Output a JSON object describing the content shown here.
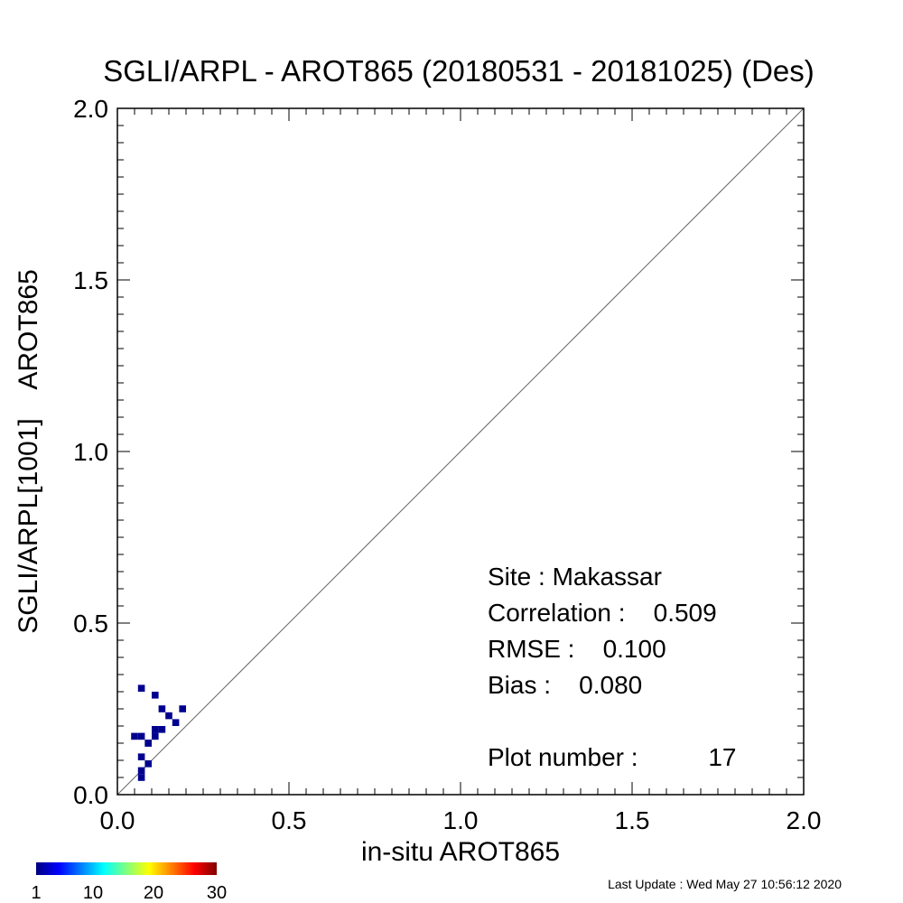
{
  "chart_data": {
    "type": "heatmap",
    "title": "SGLI/ARPL - AROT865 (20180531 - 20181025) (Des)",
    "xlabel": "in-situ AROT865",
    "ylabel": "SGLI/ARPL[1001]    AROT865",
    "xlim": [
      0.0,
      2.0
    ],
    "ylim": [
      0.0,
      2.0
    ],
    "x_ticks": [
      "0.0",
      "0.5",
      "1.0",
      "1.5",
      "2.0"
    ],
    "y_ticks": [
      "0.0",
      "0.5",
      "1.0",
      "1.5",
      "2.0"
    ],
    "reference_line": "1:1",
    "bin_size": 0.02,
    "points": [
      {
        "x": 0.07,
        "y": 0.31,
        "count": 1
      },
      {
        "x": 0.11,
        "y": 0.29,
        "count": 1
      },
      {
        "x": 0.19,
        "y": 0.25,
        "count": 1
      },
      {
        "x": 0.13,
        "y": 0.25,
        "count": 1
      },
      {
        "x": 0.15,
        "y": 0.23,
        "count": 1
      },
      {
        "x": 0.17,
        "y": 0.21,
        "count": 1
      },
      {
        "x": 0.11,
        "y": 0.19,
        "count": 1
      },
      {
        "x": 0.13,
        "y": 0.19,
        "count": 1
      },
      {
        "x": 0.05,
        "y": 0.17,
        "count": 1
      },
      {
        "x": 0.07,
        "y": 0.17,
        "count": 1
      },
      {
        "x": 0.11,
        "y": 0.17,
        "count": 1
      },
      {
        "x": 0.09,
        "y": 0.15,
        "count": 1
      },
      {
        "x": 0.07,
        "y": 0.11,
        "count": 1
      },
      {
        "x": 0.09,
        "y": 0.09,
        "count": 1
      },
      {
        "x": 0.07,
        "y": 0.07,
        "count": 1
      },
      {
        "x": 0.07,
        "y": 0.05,
        "count": 1
      },
      {
        "x": 0.09,
        "y": 0.15,
        "count": 1
      }
    ],
    "colorbar": {
      "min": 1,
      "max": 30,
      "tick_labels": [
        "1",
        "10",
        "20",
        "30"
      ]
    },
    "stats": {
      "site": "Site : Makassar",
      "correlation": "Correlation :    0.509",
      "rmse": "RMSE :    0.100",
      "bias": "Bias :    0.080",
      "plot_number": "Plot number :          17"
    },
    "last_update": "Last Update : Wed May 27 10:56:12 2020"
  },
  "colors": {
    "low": "#00008f",
    "line": "#666666"
  }
}
